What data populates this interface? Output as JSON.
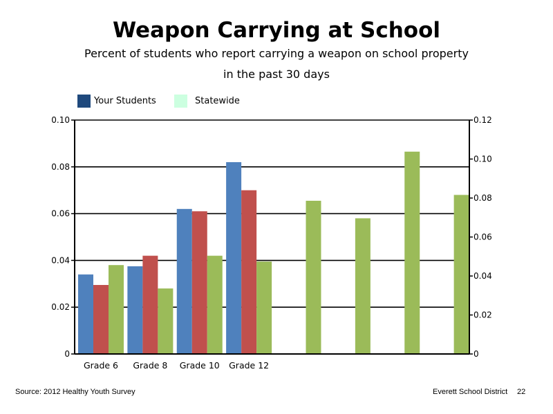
{
  "header": {
    "title": "Weapon Carrying at School",
    "subtitle_line1": "Percent of students who report carrying a weapon on school property",
    "subtitle_line2": "in the past 30 days"
  },
  "legend": [
    {
      "label": "Your Students",
      "color": "#1f497d"
    },
    {
      "label": "Statewide",
      "color": "#ccffe0"
    }
  ],
  "footer": {
    "source": "Source: 2012 Healthy Youth Survey",
    "district": "Everett School District",
    "page_number": "22"
  },
  "chart_data": {
    "type": "bar",
    "categories": [
      "Grade 6",
      "Grade 8",
      "Grade 10",
      "Grade 12",
      "",
      "",
      "",
      ""
    ],
    "left_axis": {
      "ylim": [
        0,
        0.1
      ],
      "ticks": [
        "0",
        "0.02",
        "0.04",
        "0.06",
        "0.08",
        "0.10"
      ],
      "tick_values": [
        0,
        0.02,
        0.04,
        0.06,
        0.08,
        0.1
      ]
    },
    "right_axis": {
      "ylim": [
        0,
        0.12
      ],
      "ticks": [
        "0",
        "0.02",
        "0.04",
        "0.06",
        "0.08",
        "0.10",
        "0.12"
      ],
      "tick_values": [
        0,
        0.02,
        0.04,
        0.06,
        0.08,
        0.1,
        0.12
      ]
    },
    "grid": true,
    "series": [
      {
        "color": "#4f81bd",
        "axis": "left",
        "values": [
          0.034,
          0.0375,
          0.062,
          0.082,
          null,
          null,
          null,
          null
        ]
      },
      {
        "color": "#c0504d",
        "axis": "left",
        "values": [
          0.0295,
          0.042,
          0.061,
          0.07,
          null,
          null,
          null,
          null
        ]
      },
      {
        "color": "#9bbb59",
        "axis": "left",
        "values": [
          0.038,
          0.028,
          0.042,
          0.0395,
          0.0655,
          0.058,
          0.0865,
          0.068
        ]
      }
    ]
  }
}
